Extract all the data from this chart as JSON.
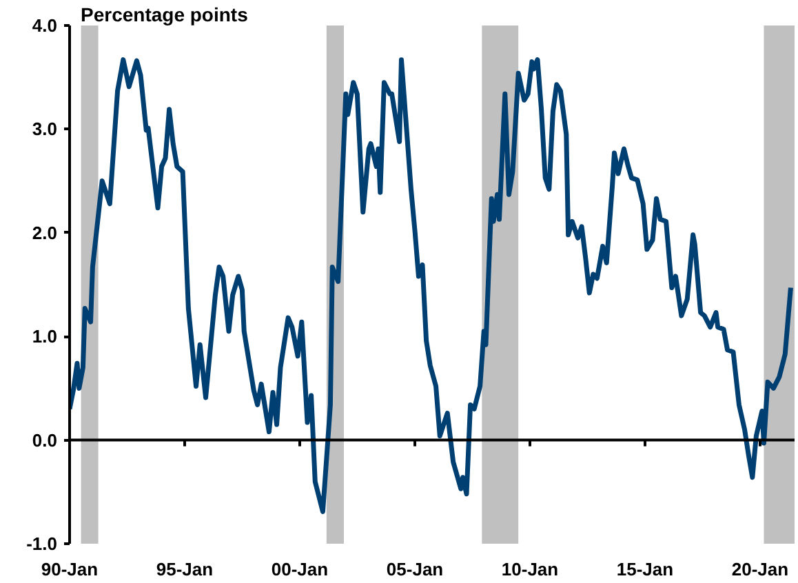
{
  "chart_data": {
    "type": "line",
    "ylabel": "Percentage points",
    "x": [
      "1990-01",
      "1990-03",
      "1990-05",
      "1990-06",
      "1990-08",
      "1990-09",
      "1990-12",
      "1991-01",
      "1991-06",
      "1991-10",
      "1992-02",
      "1992-05",
      "1992-08",
      "1992-12",
      "1993-02",
      "1993-05",
      "1993-06",
      "1993-11",
      "1994-01",
      "1994-03",
      "1994-05",
      "1994-07",
      "1994-09",
      "1994-12",
      "1995-03",
      "1995-07",
      "1995-09",
      "1995-12",
      "1996-05",
      "1996-07",
      "1996-09",
      "1996-12",
      "1997-02",
      "1997-05",
      "1997-07",
      "1997-08",
      "1998-01",
      "1998-03",
      "1998-05",
      "1998-09",
      "1998-11",
      "1999-01",
      "1999-03",
      "1999-07",
      "1999-09",
      "1999-12",
      "2000-02",
      "2000-05",
      "2000-07",
      "2000-09",
      "2001-01",
      "2001-05",
      "2001-06",
      "2001-09",
      "2002-01",
      "2002-02",
      "2002-05",
      "2002-07",
      "2002-10",
      "2003-01",
      "2003-02",
      "2003-05",
      "2003-06",
      "2003-07",
      "2003-09",
      "2003-12",
      "2004-01",
      "2004-05",
      "2004-06",
      "2004-11",
      "2005-01",
      "2005-03",
      "2005-05",
      "2005-07",
      "2005-09",
      "2005-12",
      "2006-02",
      "2006-06",
      "2006-09",
      "2007-01",
      "2007-02",
      "2007-04",
      "2007-06",
      "2007-08",
      "2007-11",
      "2008-01",
      "2008-02",
      "2008-05",
      "2008-06",
      "2008-08",
      "2008-09",
      "2008-12",
      "2009-02",
      "2009-04",
      "2009-07",
      "2009-10",
      "2009-12",
      "2010-02",
      "2010-03",
      "2010-05",
      "2010-07",
      "2010-09",
      "2010-11",
      "2011-01",
      "2011-03",
      "2011-05",
      "2011-08",
      "2011-09",
      "2011-11",
      "2012-02",
      "2012-04",
      "2012-06",
      "2012-08",
      "2012-10",
      "2012-12",
      "2013-03",
      "2013-05",
      "2013-08",
      "2013-09",
      "2013-11",
      "2014-02",
      "2014-04",
      "2014-06",
      "2014-09",
      "2014-12",
      "2015-02",
      "2015-05",
      "2015-07",
      "2015-09",
      "2015-12",
      "2016-03",
      "2016-05",
      "2016-08",
      "2016-11",
      "2017-02",
      "2017-03",
      "2017-06",
      "2017-08",
      "2017-11",
      "2018-02",
      "2018-03",
      "2018-06",
      "2018-08",
      "2018-11",
      "2019-02",
      "2019-05",
      "2019-07",
      "2019-09",
      "2019-11",
      "2020-02",
      "2020-03",
      "2020-05",
      "2020-08",
      "2020-11",
      "2021-02",
      "2021-05"
    ],
    "series": [
      {
        "color": "#003f72",
        "values": [
          0.3,
          0.48,
          0.74,
          0.5,
          0.7,
          1.27,
          1.14,
          1.67,
          2.5,
          2.28,
          3.37,
          3.67,
          3.41,
          3.66,
          3.52,
          2.99,
          3.01,
          2.24,
          2.64,
          2.72,
          3.19,
          2.86,
          2.64,
          2.59,
          1.27,
          0.52,
          0.92,
          0.41,
          1.4,
          1.67,
          1.58,
          1.05,
          1.4,
          1.58,
          1.45,
          1.05,
          0.48,
          0.34,
          0.54,
          0.08,
          0.46,
          0.15,
          0.7,
          1.18,
          1.09,
          0.81,
          1.14,
          0.17,
          0.43,
          -0.4,
          -0.69,
          0.34,
          1.67,
          1.53,
          3.34,
          3.14,
          3.45,
          3.34,
          2.2,
          2.81,
          2.86,
          2.64,
          2.81,
          2.39,
          3.45,
          3.34,
          3.34,
          2.88,
          3.67,
          2.42,
          2.02,
          1.58,
          1.69,
          0.96,
          0.72,
          0.52,
          0.04,
          0.26,
          -0.21,
          -0.47,
          -0.36,
          -0.52,
          0.34,
          0.3,
          0.52,
          1.05,
          0.92,
          2.33,
          2.11,
          2.37,
          2.13,
          3.34,
          2.37,
          2.59,
          3.54,
          3.28,
          3.34,
          3.65,
          3.58,
          3.67,
          3.19,
          2.53,
          2.42,
          3.17,
          3.43,
          3.37,
          2.95,
          1.98,
          2.11,
          1.95,
          2.06,
          1.76,
          1.42,
          1.6,
          1.56,
          1.87,
          1.71,
          2.46,
          2.77,
          2.57,
          2.81,
          2.66,
          2.53,
          2.51,
          2.28,
          1.84,
          1.93,
          2.33,
          2.13,
          2.11,
          1.47,
          1.58,
          1.2,
          1.36,
          1.98,
          1.89,
          1.23,
          1.2,
          1.09,
          1.23,
          1.09,
          1.07,
          0.87,
          0.85,
          0.34,
          0.1,
          -0.14,
          -0.36,
          0.04,
          0.28,
          -0.03,
          0.56,
          0.5,
          0.61,
          0.83,
          1.47
        ]
      }
    ],
    "xlim": [
      "1990-01",
      "2021-07"
    ],
    "xticks": [
      {
        "value": "1990-01",
        "label": "90-Jan"
      },
      {
        "value": "1995-01",
        "label": "95-Jan"
      },
      {
        "value": "2000-01",
        "label": "00-Jan"
      },
      {
        "value": "2005-01",
        "label": "05-Jan"
      },
      {
        "value": "2010-01",
        "label": "10-Jan"
      },
      {
        "value": "2015-01",
        "label": "15-Jan"
      },
      {
        "value": "2020-01",
        "label": "20-Jan"
      }
    ],
    "ylim": [
      -1.0,
      4.0
    ],
    "yticks": [
      {
        "value": -1,
        "label": "-1.0"
      },
      {
        "value": 0,
        "label": "0.0"
      },
      {
        "value": 1,
        "label": "1.0"
      },
      {
        "value": 2,
        "label": "2.0"
      },
      {
        "value": 3,
        "label": "3.0"
      },
      {
        "value": 4,
        "label": "4.0"
      }
    ],
    "ref_lines": [
      {
        "axis": "y",
        "value": 0,
        "color": "#000000"
      }
    ],
    "bands": [
      {
        "axis": "x",
        "from": "1990-07",
        "to": "1991-04",
        "color": "#c0c0c0"
      },
      {
        "axis": "x",
        "from": "2001-03",
        "to": "2001-12",
        "color": "#c0c0c0"
      },
      {
        "axis": "x",
        "from": "2007-12",
        "to": "2009-07",
        "color": "#c0c0c0"
      },
      {
        "axis": "x",
        "from": "2020-03",
        "to": "2021-07",
        "color": "#c0c0c0"
      }
    ],
    "grid": false
  }
}
